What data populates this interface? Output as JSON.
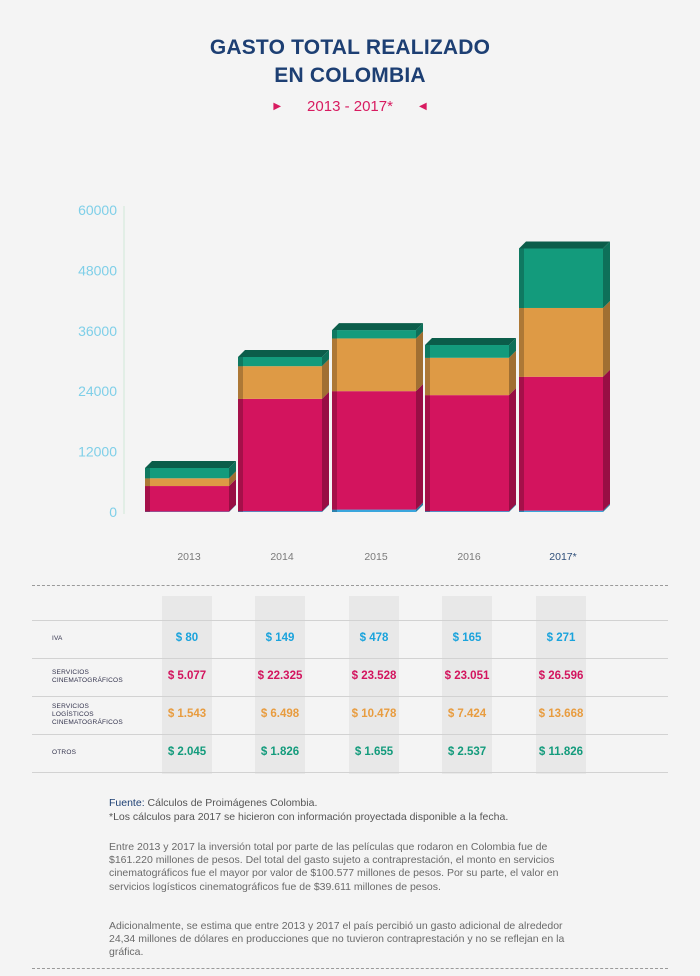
{
  "title_line1": "GASTO TOTAL REALIZADO",
  "title_line2": "EN COLOMBIA",
  "subtitle": "2013 - 2017*",
  "chart_data": {
    "type": "bar",
    "stacked": true,
    "categories": [
      "2013",
      "2014",
      "2015",
      "2016",
      "2017*"
    ],
    "series": [
      {
        "key": "iva",
        "values": [
          80,
          149,
          478,
          165,
          271
        ],
        "color": "#3aa6dd"
      },
      {
        "key": "servicios_cinematograficos",
        "values": [
          5077,
          22325,
          23528,
          23051,
          26596
        ],
        "color": "#d3145e"
      },
      {
        "key": "servicios_logisticos",
        "values": [
          1543,
          6498,
          10478,
          7424,
          13668
        ],
        "color": "#de9a45"
      },
      {
        "key": "otros",
        "values": [
          2045,
          1826,
          1655,
          2537,
          11826
        ],
        "color": "#139b7c"
      }
    ],
    "y_ticks": [
      "0",
      "12000",
      "24000",
      "36000",
      "48000",
      "60000"
    ],
    "ylim": [
      0,
      60000
    ],
    "grid": false
  },
  "table": {
    "rows": [
      {
        "label": "IVA",
        "color": "#1aa3dc",
        "values": [
          "$ 80",
          "$ 149",
          "$ 478",
          "$ 165",
          "$ 271"
        ]
      },
      {
        "label": "SERVICIOS\nCINEMATOGRÁFICOS",
        "color": "#d3145e",
        "values": [
          "$ 5.077",
          "$ 22.325",
          "$ 23.528",
          "$ 23.051",
          "$ 26.596"
        ]
      },
      {
        "label": "SERVICIOS\nLOGÍSTICOS\nCINEMATOGRÁFICOS",
        "color": "#e89c3f",
        "values": [
          "$ 1.543",
          "$ 6.498",
          "$ 10.478",
          "$ 7.424",
          "$ 13.668"
        ]
      },
      {
        "label": "OTROS",
        "color": "#139b7c",
        "values": [
          "$ 2.045",
          "$ 1.826",
          "$ 1.655",
          "$ 2.537",
          "$ 11.826"
        ]
      }
    ]
  },
  "source_label": "Fuente:",
  "source_text": " Cálculos de Proimágenes Colombia.",
  "footnote": "*Los cálculos para 2017 se hicieron con información proyectada disponible a la fecha.",
  "paragraph1": "Entre 2013 y 2017 la inversión total por parte de las películas que rodaron en Colombia fue de $161.220 millones de pesos. Del total del gasto sujeto a contraprestación, el monto en servicios cinematográficos fue el mayor por valor de $100.577 millones de pesos. Por su parte, el valor en servicios logísticos cinematográficos fue de $39.611 millones de pesos.",
  "paragraph2": "Adicionalmente, se estima que entre 2013 y 2017 el país percibió un gasto adicional de alrededor 24,34 millones de dólares en producciones que no tuvieron contraprestación y no se reflejan en la gráfica."
}
